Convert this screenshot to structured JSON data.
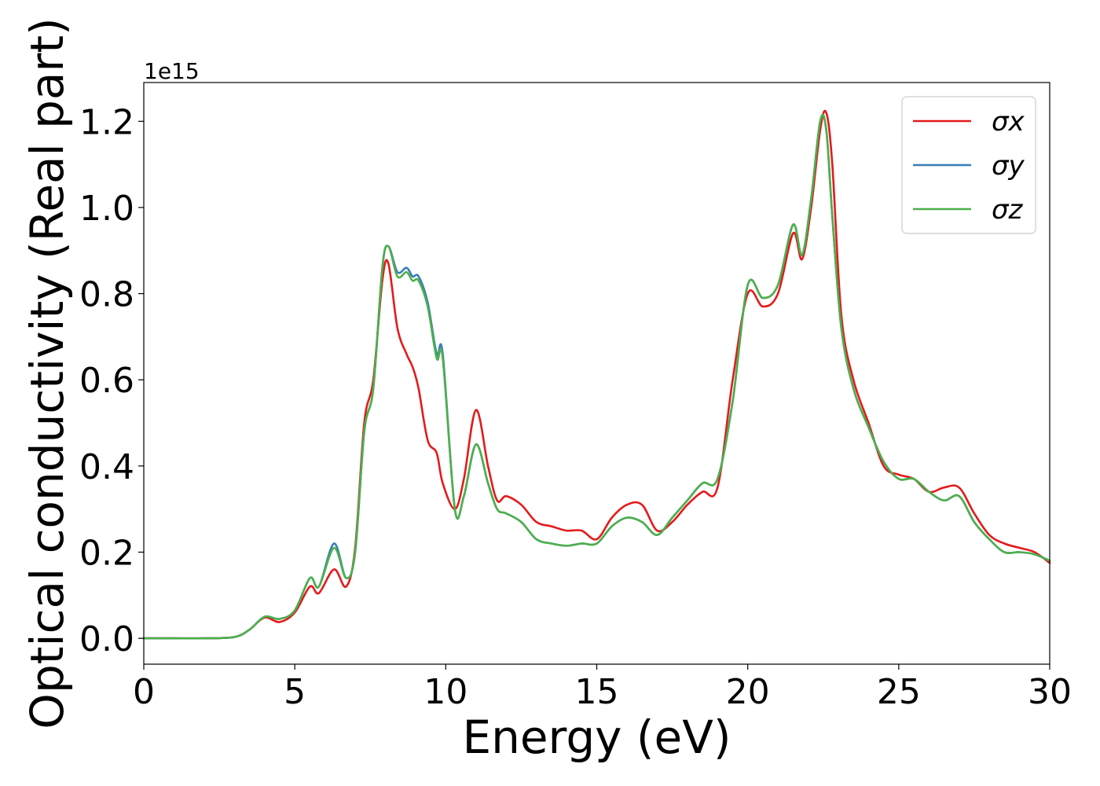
{
  "chart_data": {
    "type": "line",
    "xlabel": "Energy (eV)",
    "ylabel": "Optical conductivity (Real part)",
    "y_offset_label": "1e15",
    "xlim": [
      0,
      30
    ],
    "ylim": [
      -0.06,
      1.29
    ],
    "y_scale_factor": 1000000000000000.0,
    "xticks": [
      "0",
      "5",
      "10",
      "15",
      "20",
      "25",
      "30"
    ],
    "yticks": [
      "0.0",
      "0.2",
      "0.4",
      "0.6",
      "0.8",
      "1.0",
      "1.2"
    ],
    "grid": false,
    "legend_position": "top-right",
    "x": [
      0,
      1,
      2,
      3,
      3.5,
      4,
      4.5,
      5,
      5.5,
      5.8,
      6.3,
      6.7,
      7,
      7.3,
      7.6,
      7.9,
      8.1,
      8.4,
      8.7,
      8.9,
      9.1,
      9.4,
      9.7,
      9.9,
      10.3,
      10.6,
      11,
      11.4,
      11.7,
      12,
      12.5,
      13,
      13.5,
      14,
      14.5,
      15,
      15.5,
      16,
      16.5,
      17,
      17.5,
      18,
      18.5,
      19,
      19.5,
      20,
      20.5,
      21,
      21.5,
      21.8,
      22.1,
      22.4,
      22.6,
      22.8,
      23.1,
      23.5,
      24,
      24.5,
      25,
      25.5,
      26,
      26.5,
      27,
      27.5,
      28,
      28.5,
      29,
      29.5,
      30
    ],
    "series": [
      {
        "name": "σx",
        "color": "#e41a1c",
        "values": [
          0.0,
          0.0,
          0.0,
          0.003,
          0.02,
          0.048,
          0.038,
          0.06,
          0.12,
          0.105,
          0.16,
          0.12,
          0.21,
          0.5,
          0.6,
          0.83,
          0.87,
          0.72,
          0.66,
          0.63,
          0.58,
          0.46,
          0.43,
          0.36,
          0.3,
          0.37,
          0.53,
          0.4,
          0.32,
          0.33,
          0.31,
          0.27,
          0.26,
          0.25,
          0.25,
          0.23,
          0.28,
          0.31,
          0.31,
          0.25,
          0.27,
          0.31,
          0.34,
          0.35,
          0.6,
          0.8,
          0.77,
          0.8,
          0.94,
          0.88,
          1.0,
          1.18,
          1.22,
          1.1,
          0.75,
          0.6,
          0.5,
          0.4,
          0.38,
          0.37,
          0.34,
          0.35,
          0.35,
          0.29,
          0.24,
          0.22,
          0.21,
          0.2,
          0.175
        ]
      },
      {
        "name": "σy",
        "color": "#377eb8",
        "values": [
          0.0,
          0.0,
          0.0,
          0.003,
          0.02,
          0.05,
          0.045,
          0.065,
          0.14,
          0.12,
          0.22,
          0.14,
          0.2,
          0.48,
          0.58,
          0.86,
          0.91,
          0.85,
          0.86,
          0.84,
          0.84,
          0.78,
          0.66,
          0.66,
          0.3,
          0.33,
          0.45,
          0.36,
          0.3,
          0.29,
          0.27,
          0.23,
          0.22,
          0.215,
          0.22,
          0.22,
          0.26,
          0.28,
          0.27,
          0.24,
          0.28,
          0.32,
          0.36,
          0.37,
          0.55,
          0.82,
          0.79,
          0.82,
          0.96,
          0.89,
          1.02,
          1.2,
          1.18,
          0.98,
          0.72,
          0.58,
          0.49,
          0.41,
          0.37,
          0.37,
          0.34,
          0.32,
          0.33,
          0.27,
          0.23,
          0.2,
          0.2,
          0.195,
          0.18
        ]
      },
      {
        "name": "σz",
        "color": "#4daf4a",
        "values": [
          0.0,
          0.0,
          0.0,
          0.003,
          0.02,
          0.05,
          0.045,
          0.065,
          0.14,
          0.12,
          0.21,
          0.14,
          0.2,
          0.48,
          0.58,
          0.86,
          0.91,
          0.84,
          0.85,
          0.83,
          0.83,
          0.77,
          0.65,
          0.65,
          0.3,
          0.33,
          0.45,
          0.36,
          0.3,
          0.29,
          0.27,
          0.23,
          0.22,
          0.215,
          0.22,
          0.22,
          0.26,
          0.28,
          0.27,
          0.24,
          0.28,
          0.32,
          0.36,
          0.37,
          0.55,
          0.82,
          0.79,
          0.82,
          0.96,
          0.89,
          1.02,
          1.2,
          1.18,
          0.98,
          0.72,
          0.58,
          0.49,
          0.41,
          0.37,
          0.37,
          0.34,
          0.32,
          0.33,
          0.27,
          0.23,
          0.2,
          0.2,
          0.195,
          0.18
        ]
      }
    ]
  }
}
